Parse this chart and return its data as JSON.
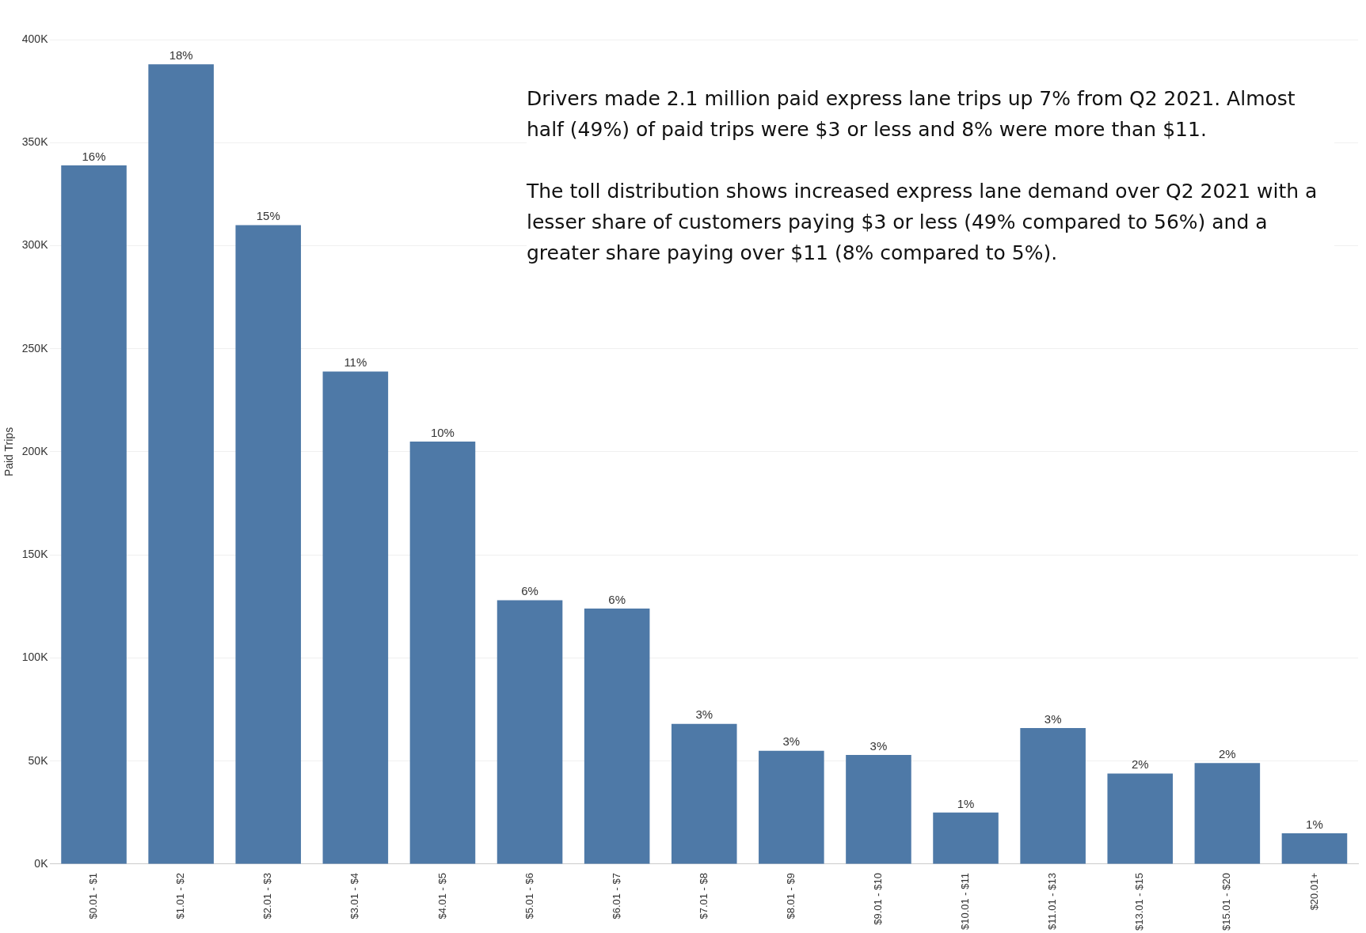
{
  "chart_data": {
    "type": "bar",
    "ylabel": "Paid Trips",
    "categories": [
      "$0.01 - $1",
      "$1.01 - $2",
      "$2.01 - $3",
      "$3.01 - $4",
      "$4.01 - $5",
      "$5.01 - $6",
      "$6.01 - $7",
      "$7.01 - $8",
      "$8.01 - $9",
      "$9.01 - $10",
      "$10.01 - $11",
      "$11.01 - $13",
      "$13.01 - $15",
      "$15.01 - $20",
      "$20.01+"
    ],
    "values": [
      339000,
      388000,
      310000,
      239000,
      205000,
      128000,
      124000,
      68000,
      55000,
      53000,
      25000,
      66000,
      44000,
      49000,
      15000
    ],
    "color": "#4e79a7",
    "ylim": [
      0,
      400000
    ],
    "yticks": [
      {
        "value": 0,
        "label": "0K"
      },
      {
        "value": 50000,
        "label": "50K"
      },
      {
        "value": 100000,
        "label": "100K"
      },
      {
        "value": 150000,
        "label": "150K"
      },
      {
        "value": 200000,
        "label": "200K"
      },
      {
        "value": 250000,
        "label": "250K"
      },
      {
        "value": 300000,
        "label": "300K"
      },
      {
        "value": 350000,
        "label": "350K"
      },
      {
        "value": 400000,
        "label": "400K"
      }
    ],
    "grid": "y",
    "annotations": [
      {
        "text": "16%",
        "x": "$0.01 - $1",
        "y": 339000
      },
      {
        "text": "18%",
        "x": "$1.01 - $2",
        "y": 388000
      },
      {
        "text": "15%",
        "x": "$2.01 - $3",
        "y": 310000
      },
      {
        "text": "11%",
        "x": "$3.01 - $4",
        "y": 239000
      },
      {
        "text": "10%",
        "x": "$4.01 - $5",
        "y": 205000
      },
      {
        "text": "6%",
        "x": "$5.01 - $6",
        "y": 128000
      },
      {
        "text": "6%",
        "x": "$6.01 - $7",
        "y": 124000
      },
      {
        "text": "3%",
        "x": "$7.01 - $8",
        "y": 68000
      },
      {
        "text": "3%",
        "x": "$8.01 - $9",
        "y": 55000
      },
      {
        "text": "3%",
        "x": "$9.01 - $10",
        "y": 53000
      },
      {
        "text": "1%",
        "x": "$10.01 - $11",
        "y": 25000
      },
      {
        "text": "3%",
        "x": "$11.01 - $13",
        "y": 66000
      },
      {
        "text": "2%",
        "x": "$13.01 - $15",
        "y": 44000
      },
      {
        "text": "2%",
        "x": "$15.01 - $20",
        "y": 49000
      },
      {
        "text": "1%",
        "x": "$20.01+",
        "y": 15000
      },
      "Drivers made 2.1 million paid express lane trips up 7% from Q2 2021. Almost half (49%) of paid trips were $3 or less and 8% were more than $11.",
      "The toll distribution shows increased express lane demand over Q2 2021 with a lesser share of customers paying $3 or less (49% compared to 56%) and a greater share paying over $11 (8% compared to 5%)."
    ]
  }
}
